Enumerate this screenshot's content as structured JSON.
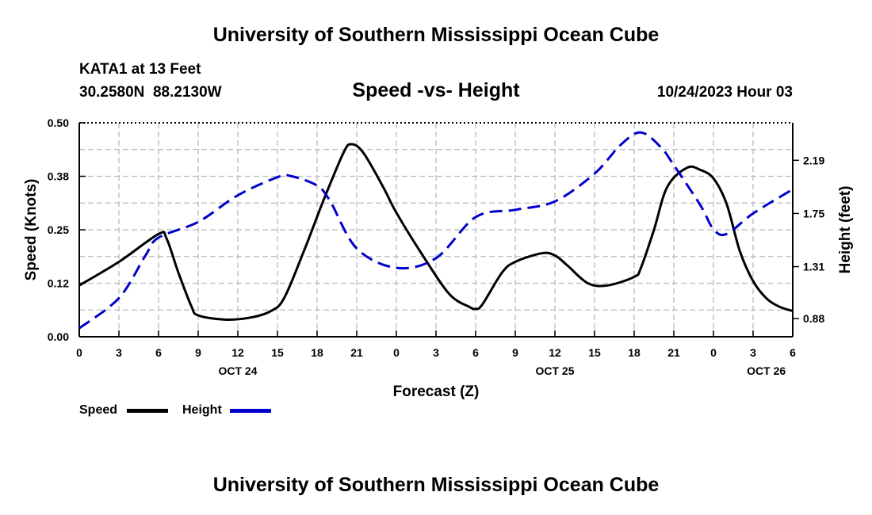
{
  "header": {
    "title": "University of Southern Mississippi Ocean Cube",
    "station": "KATA1 at 13 Feet",
    "coords": "30.2580N  88.2130W",
    "subtitle": "Speed -vs- Height",
    "datetime": "10/24/2023 Hour 03",
    "footer_title": "University of Southern Mississippi Ocean Cube"
  },
  "legend": {
    "speed_label": "Speed",
    "height_label": "Height"
  },
  "colors": {
    "speed": "#000000",
    "height": "#0000cc",
    "grid": "#bbbbbb"
  },
  "chart_data": {
    "type": "line",
    "xlabel": "Forecast (Z)",
    "ylabel": "Speed (Knots)",
    "y2label": "Height (feet)",
    "xlim": [
      0,
      54
    ],
    "ylim": [
      0,
      0.5
    ],
    "y2lim": [
      0.73,
      2.5
    ],
    "x_ticks": [
      0,
      3,
      6,
      9,
      12,
      15,
      18,
      21,
      24,
      27,
      30,
      33,
      36,
      39,
      42,
      45,
      48,
      51,
      54
    ],
    "x_tick_labels": [
      "0",
      "3",
      "6",
      "9",
      "12",
      "15",
      "18",
      "21",
      "0",
      "3",
      "6",
      "9",
      "12",
      "15",
      "18",
      "21",
      "0",
      "3",
      "6"
    ],
    "date_labels": [
      {
        "x": 12,
        "label": "OCT 24"
      },
      {
        "x": 36,
        "label": "OCT 25"
      },
      {
        "x": 52,
        "label": "OCT 26"
      }
    ],
    "y_ticks": [
      0,
      0.125,
      0.25,
      0.375,
      0.5
    ],
    "y_tick_labels": [
      "0.00",
      "0.12",
      "0.25",
      "0.38",
      "0.50"
    ],
    "y2_ticks": [
      0.88,
      1.31,
      1.75,
      2.19
    ],
    "y2_tick_labels": [
      "0.88",
      "1.31",
      "1.75",
      "2.19"
    ],
    "grid": true,
    "series": [
      {
        "name": "Speed",
        "axis": "left",
        "style": "solid",
        "x": [
          0,
          3,
          6,
          6.6,
          7.5,
          8.5,
          9,
          11,
          13,
          14.5,
          15.5,
          17,
          18.5,
          20,
          20.6,
          21.5,
          23,
          24,
          26,
          28,
          29.5,
          30,
          30.5,
          32,
          33,
          35,
          36,
          37,
          38.5,
          40,
          42,
          42.5,
          43.5,
          44.5,
          46,
          47,
          48,
          49,
          50,
          51,
          52,
          53,
          54
        ],
        "y": [
          0.12,
          0.175,
          0.24,
          0.23,
          0.15,
          0.07,
          0.05,
          0.04,
          0.045,
          0.06,
          0.09,
          0.2,
          0.32,
          0.43,
          0.45,
          0.43,
          0.35,
          0.29,
          0.19,
          0.1,
          0.07,
          0.065,
          0.075,
          0.15,
          0.175,
          0.195,
          0.19,
          0.165,
          0.125,
          0.12,
          0.14,
          0.16,
          0.25,
          0.35,
          0.395,
          0.39,
          0.37,
          0.31,
          0.2,
          0.13,
          0.09,
          0.07,
          0.06
        ]
      },
      {
        "name": "Height",
        "axis": "right",
        "style": "dashed",
        "x": [
          0,
          3,
          5,
          6,
          9,
          12,
          15,
          16,
          18,
          19,
          21,
          24,
          27,
          30,
          33,
          36,
          39,
          41,
          42.5,
          44,
          45,
          47,
          48,
          49,
          51,
          54
        ],
        "y": [
          0.8,
          1.05,
          1.4,
          1.55,
          1.68,
          1.9,
          2.05,
          2.06,
          1.98,
          1.85,
          1.46,
          1.3,
          1.38,
          1.72,
          1.78,
          1.85,
          2.08,
          2.32,
          2.42,
          2.3,
          2.15,
          1.82,
          1.62,
          1.58,
          1.75,
          1.95
        ]
      }
    ]
  }
}
